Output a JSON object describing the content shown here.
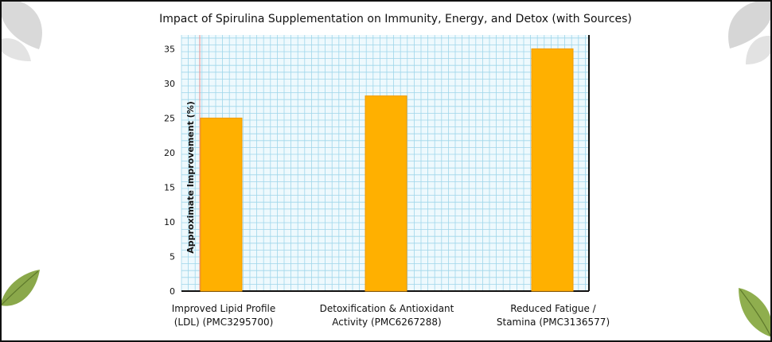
{
  "chart_data": {
    "type": "bar",
    "title": "Impact of Spirulina Supplementation on Immunity, Energy, and Detox (with Sources)",
    "ylabel": "Approximate Improvement (%)",
    "xlabel": "",
    "ylim": [
      0,
      37
    ],
    "yticks": [
      0,
      5,
      10,
      15,
      20,
      25,
      30,
      35
    ],
    "categories": [
      [
        "Improved Lipid Profile",
        "(LDL) (PMC3295700)"
      ],
      [
        "Detoxification & Antioxidant",
        "Activity (PMC6267288)"
      ],
      [
        "Reduced Fatigue /",
        "Stamina (PMC3136577)"
      ]
    ],
    "values": [
      25,
      28.2,
      35
    ],
    "grid": true,
    "legend": "none"
  },
  "colors": {
    "bar": "#ffb000",
    "bar_edge": "#f29a00",
    "grid": "#9fd6ea",
    "plot_bg": "#eef9fd",
    "accent_line": "#e88b8b"
  }
}
